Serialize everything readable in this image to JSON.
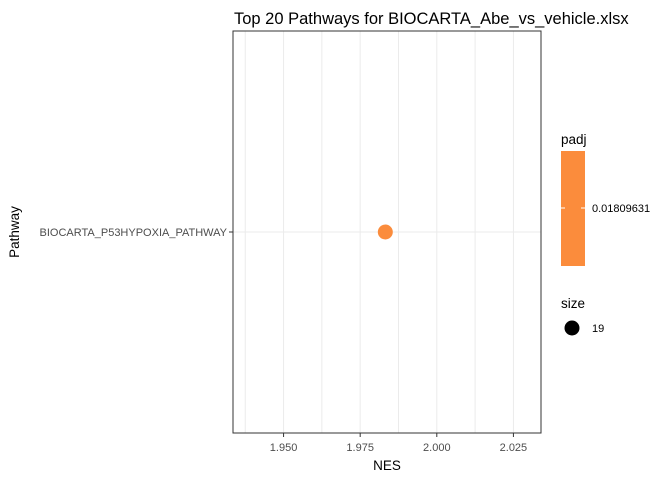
{
  "chart_data": {
    "type": "scatter",
    "title": "Top 20 Pathways for  BIOCARTA_Abe_vs_vehicle.xlsx",
    "xlabel": "NES",
    "ylabel": "Pathway",
    "xlim": [
      1.9335,
      2.034
    ],
    "x_ticks": [
      "1.950",
      "1.975",
      "2.000",
      "2.025"
    ],
    "x_tick_values": [
      1.95,
      1.975,
      2.0,
      2.025
    ],
    "categories": [
      "BIOCARTA_P53HYPOXIA_PATHWAY"
    ],
    "points": [
      {
        "pathway": "BIOCARTA_P53HYPOXIA_PATHWAY",
        "nes": 1.9832,
        "padj": 0.01809631,
        "size": 19
      }
    ],
    "grid": true,
    "legend_placement": "right",
    "color_legend": {
      "title": "padj",
      "label": "0.01809631",
      "color": "#FB8C3C"
    },
    "size_legend": {
      "title": "size",
      "label": "19",
      "color": "#000000"
    }
  }
}
